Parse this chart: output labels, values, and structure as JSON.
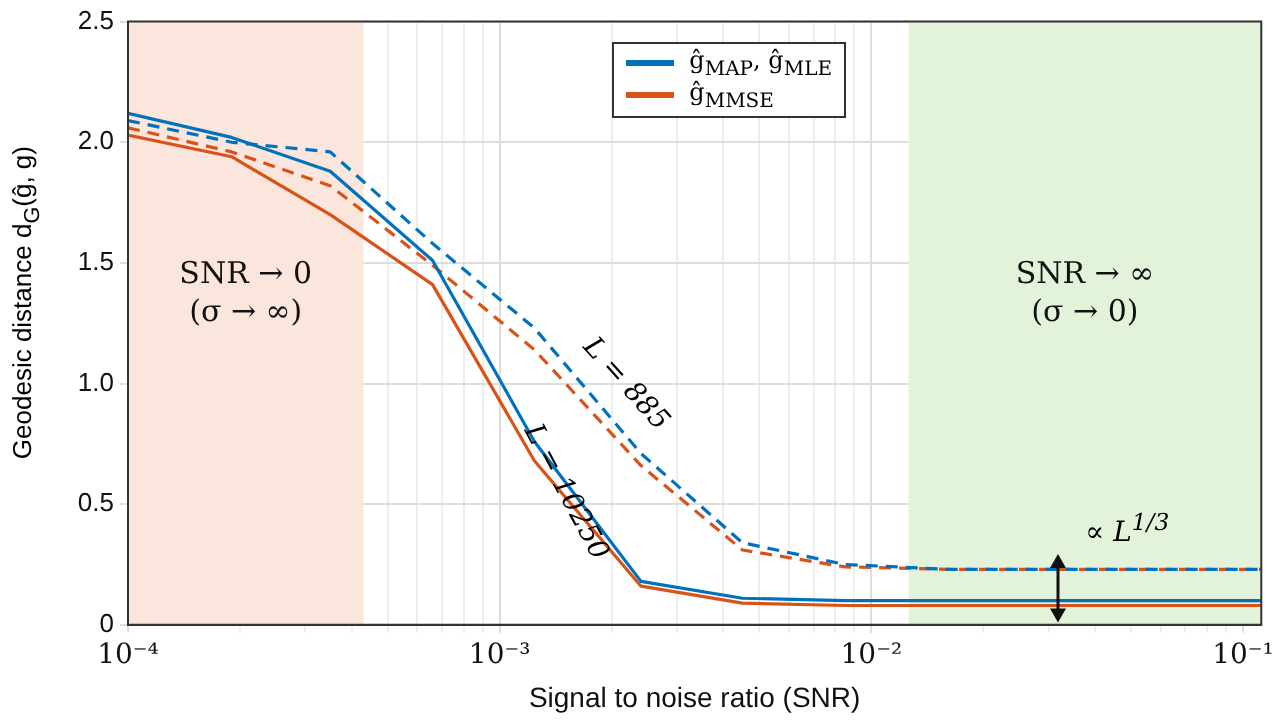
{
  "chart_data": {
    "type": "line",
    "xlabel": "Signal to noise ratio (SNR)",
    "ylabel": "Geodesic distance d$_{G}$(ĝ, g)",
    "x": [
      0.0001,
      0.00019,
      0.00035,
      0.00066,
      0.00124,
      0.0024,
      0.0045,
      0.0085,
      0.016,
      0.03,
      0.056,
      0.112
    ],
    "series": [
      {
        "name": "ĝ$_{MAP}$, ĝ$_{MLE}$",
        "color": "#0072bd",
        "line_style": "solid",
        "values": [
          2.12,
          2.02,
          1.88,
          1.51,
          0.76,
          0.18,
          0.11,
          0.1,
          0.1,
          0.1,
          0.1,
          0.1
        ]
      },
      {
        "name": "ĝ$_{MMSE}$",
        "color": "#d95319",
        "line_style": "solid",
        "values": [
          2.03,
          1.94,
          1.7,
          1.41,
          0.68,
          0.16,
          0.09,
          0.08,
          0.08,
          0.08,
          0.08,
          0.08
        ]
      },
      {
        "color": "#0072bd",
        "line_style": "dashed",
        "values": [
          2.09,
          2.0,
          1.96,
          1.58,
          1.23,
          0.71,
          0.34,
          0.25,
          0.23,
          0.23,
          0.23,
          0.23
        ]
      },
      {
        "color": "#d95319",
        "line_style": "dashed",
        "values": [
          2.06,
          1.96,
          1.82,
          1.49,
          1.14,
          0.66,
          0.31,
          0.24,
          0.23,
          0.23,
          0.23,
          0.23
        ]
      }
    ],
    "log": "x",
    "xlim": [
      0.0001,
      0.112
    ],
    "ylim": [
      0,
      2.5
    ],
    "xticks": [
      {
        "value": 0.0001,
        "label": "10⁻⁴"
      },
      {
        "value": 0.0002,
        "label": null
      },
      {
        "value": 0.0003,
        "label": null
      },
      {
        "value": 0.0004,
        "label": null
      },
      {
        "value": 0.0005,
        "label": null
      },
      {
        "value": 0.0006,
        "label": null
      },
      {
        "value": 0.0007,
        "label": null
      },
      {
        "value": 0.0008,
        "label": null
      },
      {
        "value": 0.0009,
        "label": null
      },
      {
        "value": 0.001,
        "label": "10⁻³"
      },
      {
        "value": 0.002,
        "label": null
      },
      {
        "value": 0.003,
        "label": null
      },
      {
        "value": 0.004,
        "label": null
      },
      {
        "value": 0.005,
        "label": null
      },
      {
        "value": 0.006,
        "label": null
      },
      {
        "value": 0.007,
        "label": null
      },
      {
        "value": 0.008,
        "label": null
      },
      {
        "value": 0.009,
        "label": null
      },
      {
        "value": 0.01,
        "label": "10⁻²"
      },
      {
        "value": 0.02,
        "label": null
      },
      {
        "value": 0.03,
        "label": null
      },
      {
        "value": 0.04,
        "label": null
      },
      {
        "value": 0.05,
        "label": null
      },
      {
        "value": 0.06,
        "label": null
      },
      {
        "value": 0.07,
        "label": null
      },
      {
        "value": 0.08,
        "label": null
      },
      {
        "value": 0.09,
        "label": null
      },
      {
        "value": 0.1,
        "label": "10⁻¹"
      }
    ],
    "yticks": [
      0,
      0.5,
      {
        "value": 1,
        "label": "1.0"
      },
      1.5,
      {
        "value": 2,
        "label": "2.0"
      },
      2.5
    ],
    "grid": true,
    "legend": "top right",
    "marker": "none",
    "bands": [
      {
        "axis": "x",
        "from": 0.0001,
        "to": 0.00043,
        "label": "SNR → 0\n(σ → ∞)",
        "color": "#fbe6dd"
      },
      {
        "axis": "x",
        "from": 0.0126,
        "to": 0.112,
        "label": "SNR → ∞\n(σ → 0)",
        "color": "#e3f3da"
      }
    ],
    "annotations": [
      "L = 885",
      {
        "text": "L = 10250",
        "x": 0.0015,
        "y": 0.55
      },
      "∝ L$^{1/3}$"
    ]
  }
}
